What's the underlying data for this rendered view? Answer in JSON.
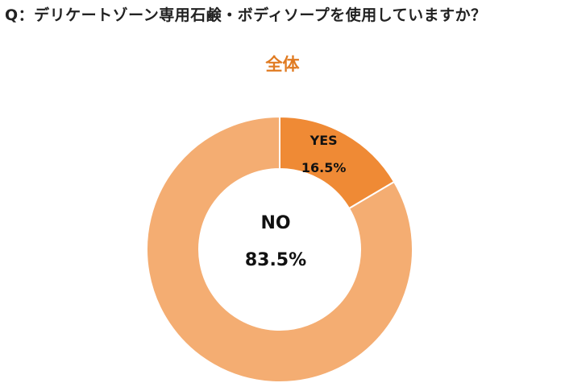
{
  "question": "Q：デリケートゾーン専用石鹸・ボディソープを使用していますか？",
  "colors": {
    "subtitle": "#e07b22",
    "yes": "#ef8a35",
    "no": "#f4ad72",
    "separator": "#ffffff"
  },
  "chart_data": {
    "type": "pie",
    "variant": "donut",
    "title": "全体",
    "start": "12 o'clock",
    "direction": "clockwise",
    "slices": [
      {
        "label": "YES",
        "value": 16.5,
        "value_label": "16.5%",
        "color": "#ef8a35"
      },
      {
        "label": "NO",
        "value": 83.5,
        "value_label": "83.5%",
        "color": "#f4ad72"
      }
    ]
  }
}
